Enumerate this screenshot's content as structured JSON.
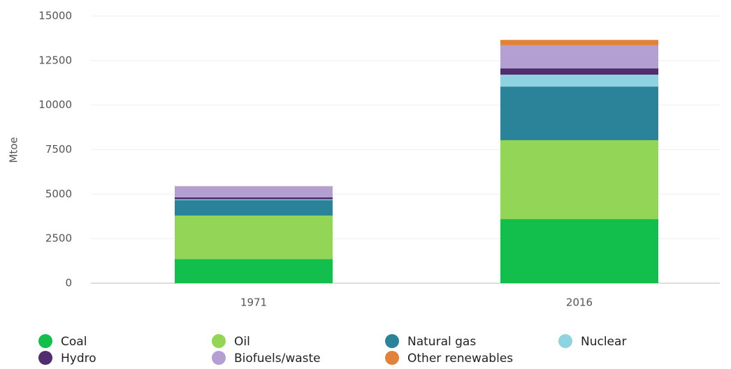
{
  "chart_data": {
    "type": "stacked_bar",
    "y_label": "Mtoe",
    "categories": [
      "1971",
      "2016"
    ],
    "series": [
      {
        "name": "Coal",
        "color": "#12bf4c",
        "values": [
          1350,
          3600
        ]
      },
      {
        "name": "Oil",
        "color": "#93d556",
        "values": [
          2450,
          4430
        ]
      },
      {
        "name": "Natural gas",
        "color": "#2a8399",
        "values": [
          860,
          3010
        ]
      },
      {
        "name": "Nuclear",
        "color": "#8fd3e3",
        "values": [
          50,
          670
        ]
      },
      {
        "name": "Hydro",
        "color": "#4f2d6e",
        "values": [
          110,
          350
        ]
      },
      {
        "name": "Biofuels/waste",
        "color": "#b39fd1",
        "values": [
          620,
          1300
        ]
      },
      {
        "name": "Other renewables",
        "color": "#e0823c",
        "values": [
          10,
          300
        ]
      }
    ],
    "ylim": [
      0,
      15000
    ],
    "yticks": [
      0,
      2500,
      5000,
      7500,
      10000,
      12500,
      15000
    ],
    "grid": true
  }
}
